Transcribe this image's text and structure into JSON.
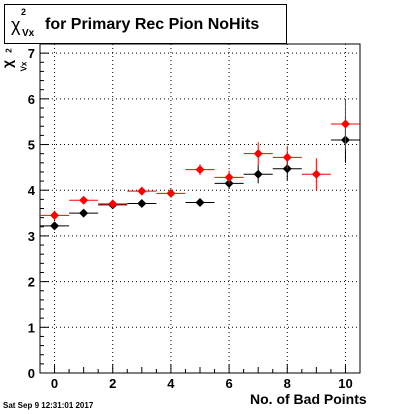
{
  "title": {
    "symbol": "χ",
    "superscript": "2",
    "subscript": "Vx",
    "text": "for Primary Rec Pion NoHits"
  },
  "timestamp": "Sat Sep  9 12:31:01 2017",
  "chart_data": {
    "type": "scatter",
    "title": "χ²_Vx for Primary Rec Pion NoHits",
    "xlabel": "No. of Bad Points",
    "ylabel": {
      "symbol": "χ",
      "superscript": "2",
      "subscript": "Vx"
    },
    "xlim": [
      -0.5,
      10.5
    ],
    "ylim": [
      0,
      7.2
    ],
    "x_ticks": [
      0,
      2,
      4,
      6,
      8,
      10
    ],
    "y_ticks": [
      0,
      1,
      2,
      3,
      4,
      5,
      6,
      7
    ],
    "grid": true,
    "series": [
      {
        "color": "#000000",
        "points": [
          {
            "x": 0,
            "y": 3.22,
            "yerr": 0.08
          },
          {
            "x": 1,
            "y": 3.5,
            "yerr": 0.06
          },
          {
            "x": 2,
            "y": 3.68,
            "yerr": 0.06
          },
          {
            "x": 3,
            "y": 3.71,
            "yerr": 0.06
          },
          {
            "x": 5,
            "y": 3.73,
            "yerr": 0.08
          },
          {
            "x": 6,
            "y": 4.15,
            "yerr": 0.12
          },
          {
            "x": 7,
            "y": 4.35,
            "yerr": 0.2
          },
          {
            "x": 8,
            "y": 4.47,
            "yerr": 0.25
          },
          {
            "x": 10,
            "y": 5.1,
            "yerr": 0.5
          }
        ]
      },
      {
        "color": "#ff0000",
        "points": [
          {
            "x": 0,
            "y": 3.45,
            "yerr": 0.1
          },
          {
            "x": 1,
            "y": 3.78,
            "yerr": 0.08
          },
          {
            "x": 2,
            "y": 3.7,
            "yerr": 0.07
          },
          {
            "x": 3,
            "y": 3.98,
            "yerr": 0.08
          },
          {
            "x": 4,
            "y": 3.93,
            "yerr": 0.08
          },
          {
            "x": 5,
            "y": 4.45,
            "yerr": 0.12
          },
          {
            "x": 6,
            "y": 4.28,
            "yerr": 0.15
          },
          {
            "x": 7,
            "y": 4.8,
            "yerr": 0.25
          },
          {
            "x": 8,
            "y": 4.72,
            "yerr": 0.25
          },
          {
            "x": 9,
            "y": 4.35,
            "yerr": 0.35
          },
          {
            "x": 10,
            "y": 5.45,
            "yerr": 0.55
          }
        ]
      }
    ]
  }
}
